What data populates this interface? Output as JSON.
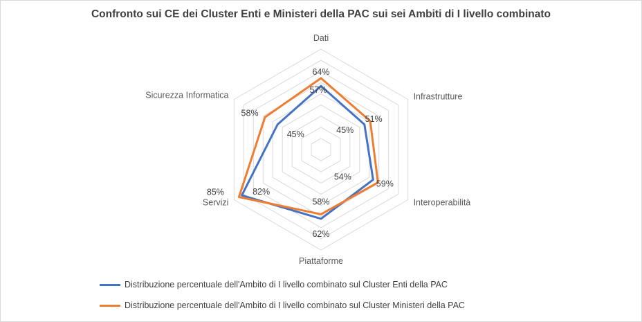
{
  "chart_data": {
    "type": "radar",
    "title": "Confronto sui CE dei Cluster Enti e Ministeri della PAC sui sei Ambiti di I livello combinato",
    "categories": [
      "Dati",
      "Infrastrutture",
      "Interoperabilità",
      "Piattaforme",
      "Servizi",
      "Sicurezza Informatica"
    ],
    "series": [
      {
        "name": "Distribuzione percentuale dell'Ambito di I livello combinato sul Cluster Enti della PAC",
        "values": [
          57,
          45,
          54,
          62,
          82,
          45
        ],
        "labels": [
          "57%",
          "45%",
          "54%",
          "62%",
          "82%",
          "45%"
        ],
        "color": "#4472c4"
      },
      {
        "name": "Distribuzione percentuale dell'Ambito di I livello combinato sul Cluster Ministeri della PAC",
        "values": [
          64,
          51,
          59,
          58,
          85,
          58
        ],
        "labels": [
          "64%",
          "51%",
          "59%",
          "58%",
          "85%",
          "58%"
        ],
        "color": "#ed7d31"
      }
    ],
    "rlim": [
      0,
      90
    ],
    "grid": true,
    "legend_position": "bottom"
  }
}
